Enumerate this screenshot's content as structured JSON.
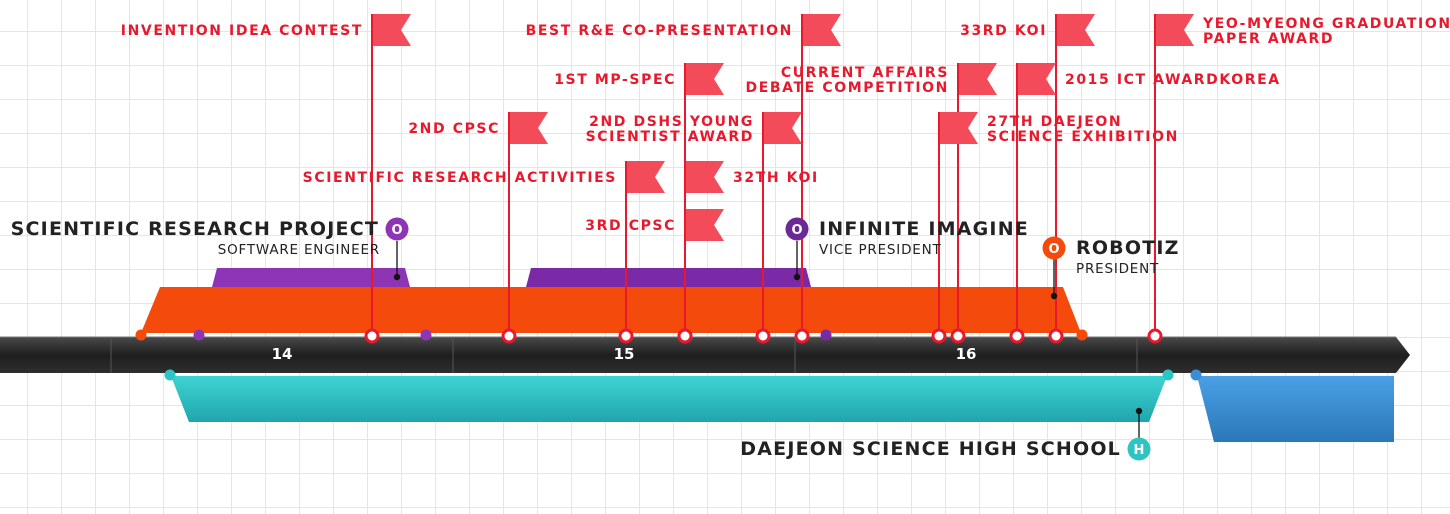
{
  "timeline": {
    "ticks": [
      "14",
      "15",
      "16"
    ]
  },
  "roles": {
    "scientific_research": {
      "title": "SCIENTIFIC RESEARCH PROJECT",
      "subtitle": "SOFTWARE ENGINEER",
      "badge": "O",
      "color": "#8e35b5"
    },
    "infinite_imagine": {
      "title": "INFINITE IMAGINE",
      "subtitle": "VICE PRESIDENT",
      "badge": "O",
      "color": "#6a2a96"
    },
    "robotiz": {
      "title": "ROBOTIZ",
      "subtitle": "PRESIDENT",
      "badge": "O",
      "color": "#f44a0c"
    },
    "school": {
      "title": "DAEJEON SCIENCE HIGH SCHOOL",
      "badge": "H",
      "color": "#2fc4c4"
    }
  },
  "events": [
    {
      "id": "invention-idea-contest",
      "lines": [
        "INVENTION IDEA CONTEST"
      ]
    },
    {
      "id": "best-rne-co-presentation",
      "lines": [
        "BEST R&E CO-PRESENTATION"
      ]
    },
    {
      "id": "33rd-koi",
      "lines": [
        "33RD KOI"
      ]
    },
    {
      "id": "yeo-myeong-graduation-paper-award",
      "lines": [
        "YEO-MYEONG GRADUATION",
        "PAPER AWARD"
      ]
    },
    {
      "id": "1st-mp-spec",
      "lines": [
        "1ST MP-SPEC"
      ]
    },
    {
      "id": "current-affairs-debate-competition",
      "lines": [
        "CURRENT AFFAIRS",
        "DEBATE COMPETITION"
      ]
    },
    {
      "id": "2015-ict-awardkorea",
      "lines": [
        "2015 ICT AWARDKOREA"
      ]
    },
    {
      "id": "2nd-cpsc",
      "lines": [
        "2ND CPSC"
      ]
    },
    {
      "id": "2nd-dshs-young-scientist-award",
      "lines": [
        "2ND DSHS YOUNG",
        "SCIENTIST AWARD"
      ]
    },
    {
      "id": "27th-daejeon-science-exhibition",
      "lines": [
        "27TH DAEJEON",
        "SCIENCE EXHIBITION"
      ]
    },
    {
      "id": "scientific-research-activities",
      "lines": [
        "SCIENTIFIC RESEARCH ACTIVITIES"
      ]
    },
    {
      "id": "32th-koi",
      "lines": [
        "32TH KOI"
      ]
    },
    {
      "id": "3rd-cpsc",
      "lines": [
        "3RD CPSC"
      ]
    }
  ],
  "colors": {
    "event_red": "#e8192c",
    "flag_red": "#f44b5a",
    "robotiz_bar": "#f44a0c",
    "purple_bar": "#8e35b5",
    "dark_purple_bar": "#7a2aa6",
    "teal_bar": "#2fc4c4",
    "blue_bar": "#3a8ed6",
    "axis": "#2a2a2a"
  }
}
